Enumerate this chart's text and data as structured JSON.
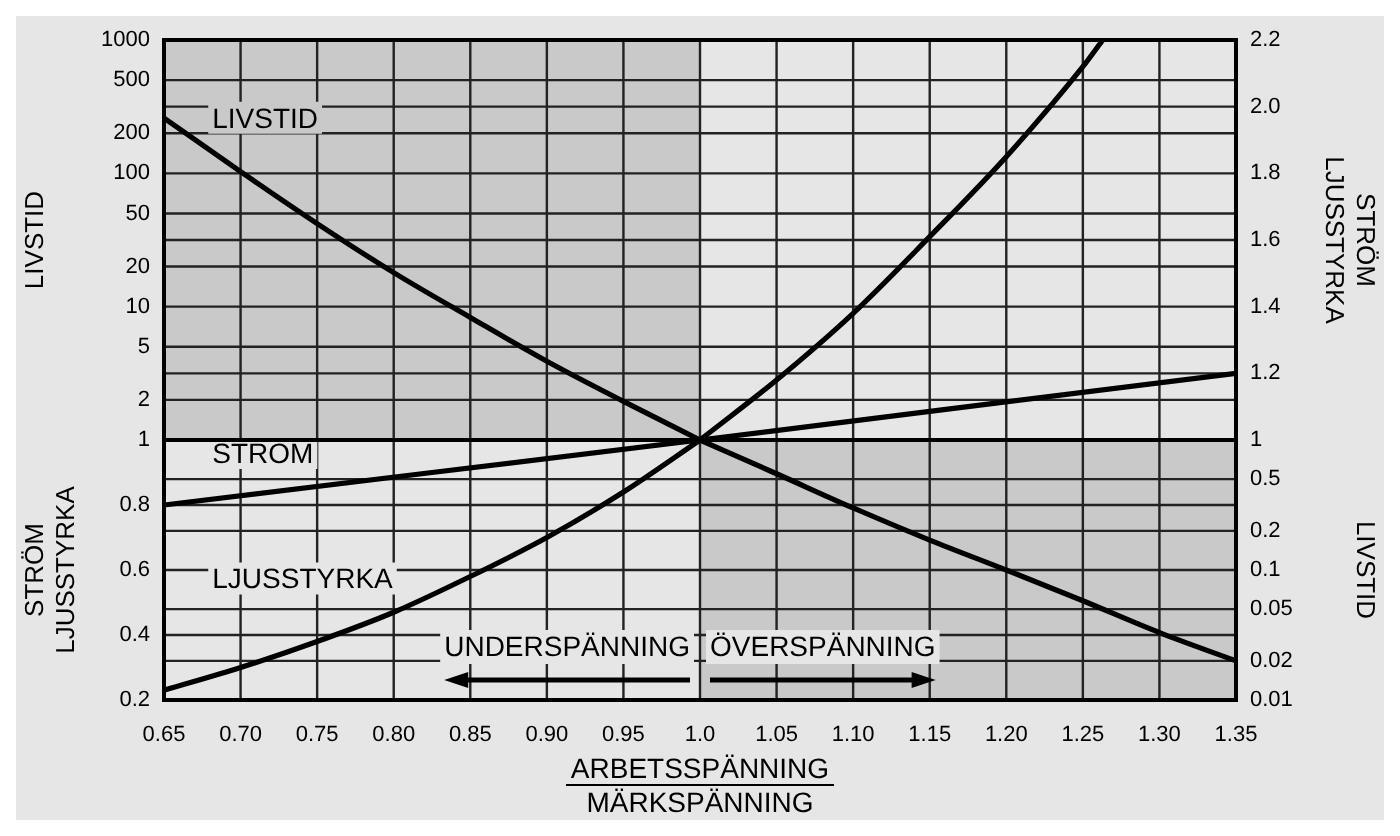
{
  "chart_data": [
    {
      "type": "line",
      "ylabel": "LIVSTID",
      "y2label": "STRÖM\nLJUSSTYRKA",
      "xlim": [
        0.65,
        1.35
      ],
      "xticks": [
        0.65,
        0.7,
        0.75,
        0.8,
        0.85,
        0.9,
        0.95,
        1,
        1.05,
        1.1,
        1.15,
        1.2,
        1.25,
        1.3,
        1.35
      ],
      "ylim": [
        1,
        1000
      ],
      "yticks": [
        1,
        2,
        5,
        10,
        20,
        50,
        100,
        200,
        500,
        1000
      ],
      "log": "y",
      "y2lim": [
        1,
        2.2
      ],
      "y2ticks": [
        1,
        1.2,
        1.4,
        1.6,
        1.8,
        {
          "value": 2,
          "label": "2.0"
        },
        2.2
      ],
      "tick_labels": "y",
      "grid": true,
      "bands": [
        {
          "axis": "x",
          "from": 0.65,
          "to": 1.0,
          "color": "#c9c9c9"
        }
      ],
      "series": [
        {
          "name": "LIVSTID",
          "color": "#000000",
          "x": [
            0.65,
            0.7,
            0.75,
            0.8,
            0.85,
            0.9,
            0.95,
            1.0
          ],
          "values": [
            260,
            103,
            42,
            18,
            8.3,
            3.9,
            1.95,
            1
          ]
        },
        {
          "color": "#000000",
          "axis": "y2",
          "x": [
            1.0,
            1.35
          ],
          "values": [
            1,
            1.2
          ]
        },
        {
          "color": "#000000",
          "axis": "y2",
          "x": [
            1.0,
            1.05,
            1.1,
            1.15,
            1.2,
            1.25,
            1.263
          ],
          "values": [
            1,
            1.18,
            1.38,
            1.61,
            1.85,
            2.12,
            2.2
          ]
        }
      ]
    },
    {
      "type": "line",
      "xlabel": "ARBETSSPÄNNING\nMÄRKSPÄNNING",
      "ylabel": "STRÖM\nLJUSSTYRKA",
      "y2label": "LIVSTID",
      "xlim": [
        0.65,
        1.35
      ],
      "xticks": [
        0.65,
        {
          "value": 0.7,
          "label": "0.70"
        },
        0.75,
        {
          "value": 0.8,
          "label": "0.80"
        },
        0.85,
        {
          "value": 0.9,
          "label": "0.90"
        },
        0.95,
        {
          "value": 1,
          "label": "1.0"
        },
        1.05,
        {
          "value": 1.1,
          "label": "1.10"
        },
        1.15,
        {
          "value": 1.2,
          "label": "1.20"
        },
        1.25,
        {
          "value": 1.3,
          "label": "1.30"
        },
        1.35
      ],
      "ylim": [
        0.2,
        1
      ],
      "yticks": [
        0.2,
        0.4,
        0.6,
        0.8
      ],
      "y2lim": [
        0.01,
        1
      ],
      "y2ticks": [
        0.01,
        0.02,
        0.05,
        0.1,
        0.2,
        0.5
      ],
      "log": "y2",
      "grid": true,
      "bands": [
        {
          "axis": "x",
          "from": 1.0,
          "to": 1.35,
          "color": "#c9c9c9"
        }
      ],
      "annotations": [
        "UNDERSPÄNNING",
        "ÖVERSPÄNNING"
      ],
      "series": [
        {
          "name": "STRÖM",
          "color": "#000000",
          "x": [
            0.65,
            1.0
          ],
          "values": [
            0.8,
            1
          ]
        },
        {
          "name": "LJUSSTYRKA",
          "color": "#000000",
          "x": [
            0.65,
            0.7,
            0.75,
            0.8,
            0.85,
            0.9,
            0.95,
            1.0
          ],
          "values": [
            0.23,
            0.3,
            0.38,
            0.47,
            0.58,
            0.7,
            0.84,
            1
          ]
        },
        {
          "color": "#000000",
          "axis": "y2",
          "x": [
            1.0,
            1.05,
            1.1,
            1.15,
            1.2,
            1.25,
            1.3,
            1.35
          ],
          "values": [
            1,
            0.55,
            0.3,
            0.17,
            0.1,
            0.058,
            0.033,
            0.02
          ]
        }
      ]
    }
  ]
}
